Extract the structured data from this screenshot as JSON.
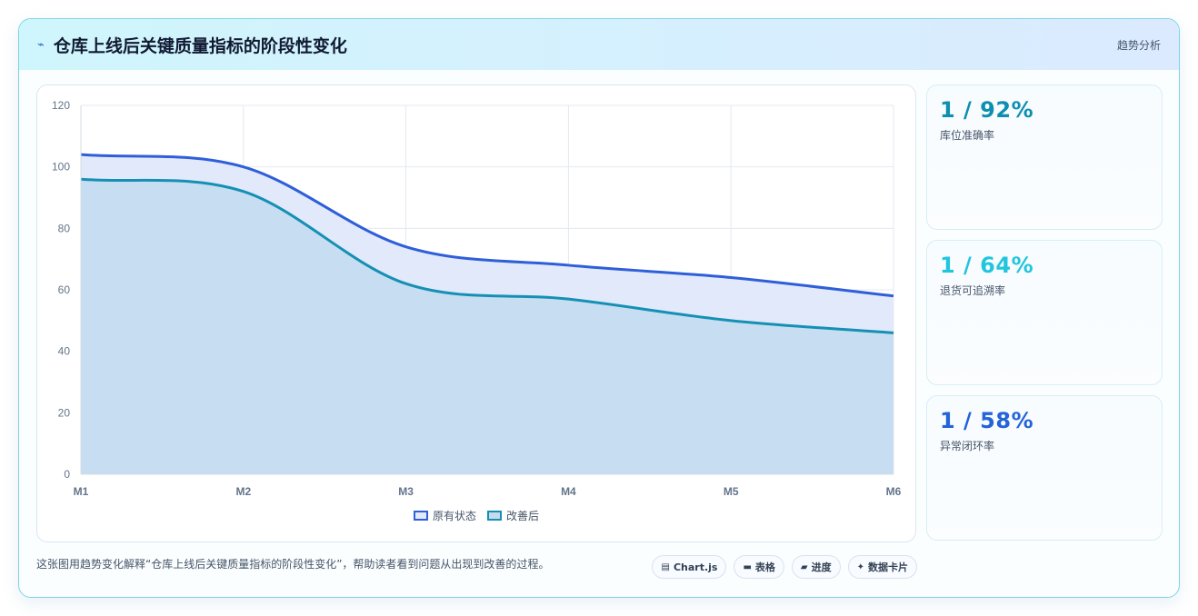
{
  "header": {
    "icon": "trend-icon",
    "title": "仓库上线后关键质量指标的阶段性变化",
    "link_label": "趋势分析"
  },
  "chart_data": {
    "type": "area",
    "categories": [
      "M1",
      "M2",
      "M3",
      "M4",
      "M5",
      "M6"
    ],
    "series": [
      {
        "name": "原有状态",
        "values": [
          104,
          100,
          74,
          68,
          64,
          58
        ],
        "color": "#2f5fd8",
        "fill": "#e1e9fb"
      },
      {
        "name": "改善后",
        "values": [
          96,
          92,
          62,
          57,
          50,
          46
        ],
        "color": "#1590b4",
        "fill": "#c5dcf0"
      }
    ],
    "ylim": [
      0,
      120
    ],
    "yticks": [
      0,
      20,
      40,
      60,
      80,
      100,
      120
    ],
    "grid": true,
    "legend_position": "bottom"
  },
  "stats": [
    {
      "value": "1 / 92%",
      "label": "库位准确率",
      "color": "#0f8fb0"
    },
    {
      "value": "1 / 64%",
      "label": "退货可追溯率",
      "color": "#22c5de"
    },
    {
      "value": "1 / 58%",
      "label": "异常闭环率",
      "color": "#2563d9"
    }
  ],
  "footer": {
    "description": "这张图用趋势变化解释“仓库上线后关键质量指标的阶段性变化”，帮助读者看到问题从出现到改善的过程。",
    "chips": [
      {
        "icon": "chart-icon",
        "glyph": "▤",
        "label": "Chart.js"
      },
      {
        "icon": "table-icon",
        "glyph": "▬",
        "label": "表格"
      },
      {
        "icon": "progress-icon",
        "glyph": "▰",
        "label": "进度"
      },
      {
        "icon": "sparkle-icon",
        "glyph": "✦",
        "label": "数据卡片"
      }
    ]
  }
}
